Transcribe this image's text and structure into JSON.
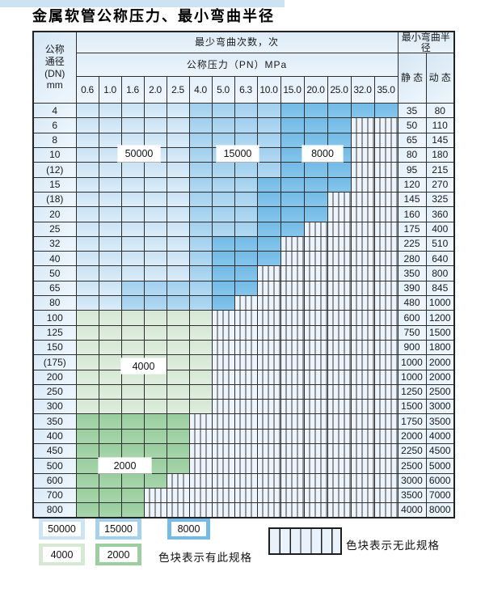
{
  "page": {
    "title": "金属软管公称压力、最小弯曲半径"
  },
  "table": {
    "dn_header_lines": [
      "公称",
      "通径",
      "(DN)",
      "mm"
    ],
    "bend_times_header": "最少弯曲次数，次",
    "pressure_header": "公称压力（PN）MPa",
    "pressure_cols": [
      "0.6",
      "1.0",
      "1.6",
      "2.0",
      "2.5",
      "4.0",
      "5.0",
      "6.3",
      "10.0",
      "15.0",
      "20.0",
      "25.0",
      "32.0",
      "35.0"
    ],
    "radius_header": "最小弯曲半径",
    "static_header": "静 态",
    "dynamic_header": "动 态",
    "zone_legend_codes": {
      "L": "50000",
      "M": "15000",
      "D": "8000",
      "G": "4000",
      "g": "2000",
      "X": "no-spec-hatch"
    },
    "rows": [
      {
        "dn": "4",
        "zones": "LLLLLMMMMDDDDD",
        "static": "35",
        "dynamic": "80"
      },
      {
        "dn": "6",
        "zones": "LLLLLMMMMDDDXX",
        "static": "50",
        "dynamic": "110"
      },
      {
        "dn": "8",
        "zones": "LLLLLMMMMDDDXX",
        "static": "65",
        "dynamic": "145"
      },
      {
        "dn": "10",
        "zones": "LLLLLMMMMDDDXX",
        "static": "80",
        "dynamic": "180"
      },
      {
        "dn": "(12)",
        "zones": "LLLLLMMMMDDDXX",
        "static": "95",
        "dynamic": "215"
      },
      {
        "dn": "15",
        "zones": "LLLLLMMMDDDDXX",
        "static": "120",
        "dynamic": "270"
      },
      {
        "dn": "(18)",
        "zones": "LLLLLMMMDDDXXX",
        "static": "145",
        "dynamic": "325"
      },
      {
        "dn": "20",
        "zones": "LLLLLMMMDDDXXX",
        "static": "160",
        "dynamic": "360"
      },
      {
        "dn": "25",
        "zones": "LLLLLMMMDDXXXX",
        "static": "175",
        "dynamic": "400"
      },
      {
        "dn": "32",
        "zones": "LLLLLMDDDXXXXX",
        "static": "225",
        "dynamic": "510"
      },
      {
        "dn": "40",
        "zones": "LLLLLMDDDXXXXX",
        "static": "280",
        "dynamic": "640"
      },
      {
        "dn": "50",
        "zones": "LLLLLMDDXXXXXX",
        "static": "350",
        "dynamic": "800"
      },
      {
        "dn": "65",
        "zones": "LLMMMMDDXXXXXX",
        "static": "390",
        "dynamic": "845"
      },
      {
        "dn": "80",
        "zones": "LLMMMMDXXXXXXX",
        "static": "480",
        "dynamic": "1000"
      },
      {
        "dn": "100",
        "zones": "GGGGGGXXXXXXXX",
        "static": "600",
        "dynamic": "1200"
      },
      {
        "dn": "125",
        "zones": "GGGGGGXXXXXXXX",
        "static": "750",
        "dynamic": "1500"
      },
      {
        "dn": "150",
        "zones": "GGGGGGXXXXXXXX",
        "static": "900",
        "dynamic": "1800"
      },
      {
        "dn": "(175)",
        "zones": "GGGGGGXXXXXXXX",
        "static": "1000",
        "dynamic": "2000"
      },
      {
        "dn": "200",
        "zones": "GGGGGGXXXXXXXX",
        "static": "1000",
        "dynamic": "2000"
      },
      {
        "dn": "250",
        "zones": "GGGGGGXXXXXXXX",
        "static": "1250",
        "dynamic": "2500"
      },
      {
        "dn": "300",
        "zones": "GGGGGGXXXXXXXX",
        "static": "1500",
        "dynamic": "3000"
      },
      {
        "dn": "350",
        "zones": "gggggXXXXXXXXX",
        "static": "1750",
        "dynamic": "3500"
      },
      {
        "dn": "400",
        "zones": "gggggXXXXXXXXX",
        "static": "2000",
        "dynamic": "4000"
      },
      {
        "dn": "450",
        "zones": "gggggXXXXXXXXX",
        "static": "2250",
        "dynamic": "4500"
      },
      {
        "dn": "500",
        "zones": "gggggXXXXXXXXX",
        "static": "2500",
        "dynamic": "5000"
      },
      {
        "dn": "600",
        "zones": "ggggXXXXXXXXXX",
        "static": "3000",
        "dynamic": "6000"
      },
      {
        "dn": "700",
        "zones": "gggXXXXXXXXXXX",
        "static": "3500",
        "dynamic": "7000"
      },
      {
        "dn": "800",
        "zones": "gggXXXXXXXXXXX",
        "static": "4000",
        "dynamic": "8000"
      }
    ]
  },
  "overlays": [
    {
      "text": "50000"
    },
    {
      "text": "15000"
    },
    {
      "text": "8000"
    },
    {
      "text": "4000"
    },
    {
      "text": "2000"
    }
  ],
  "legend": {
    "swatches": [
      {
        "label": "50000",
        "color": "#cde4f5"
      },
      {
        "label": "15000",
        "color": "#a3d1ef"
      },
      {
        "label": "8000",
        "color": "#74bbe7"
      },
      {
        "label": "4000",
        "color": "#d6e9d5"
      },
      {
        "label": "2000",
        "color": "#9bcfa0"
      }
    ],
    "has_spec_note": "色块表示有此规格",
    "no_spec_note": "色块表示无此规格"
  },
  "colors": {
    "zone_50000": "#cde4f5",
    "zone_15000": "#a3d1ef",
    "zone_8000": "#74bbe7",
    "zone_4000": "#d6e9d5",
    "zone_2000": "#9bcfa0",
    "hatch_bg": "#edf4fb",
    "grid_line": "#2e2e2e",
    "header_bg": "#e0edf8"
  }
}
